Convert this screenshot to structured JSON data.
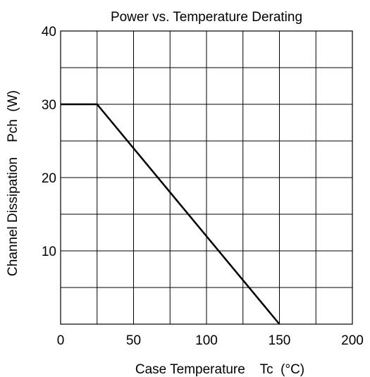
{
  "chart_data": {
    "type": "line",
    "title": "Power vs. Temperature Derating",
    "xlabel": "Case Temperature    Tc  (°C)",
    "ylabel": "Channel Dissipation    Pch  (W)",
    "xlim": [
      0,
      200
    ],
    "ylim": [
      0,
      40
    ],
    "x_ticks": [
      0,
      50,
      100,
      150,
      200
    ],
    "x_tick_labels": [
      "0",
      "50",
      "100",
      "150",
      "200"
    ],
    "y_ticks": [
      10,
      20,
      30,
      40
    ],
    "y_tick_labels": [
      "10",
      "20",
      "30",
      "40"
    ],
    "x_grid_step": 25,
    "y_grid_step": 5,
    "grid": true,
    "series": [
      {
        "x": [
          0,
          25,
          150
        ],
        "y": [
          30,
          30,
          0
        ]
      }
    ],
    "colors": {
      "line": "#000000",
      "grid": "#000000",
      "frame": "#000000"
    }
  }
}
